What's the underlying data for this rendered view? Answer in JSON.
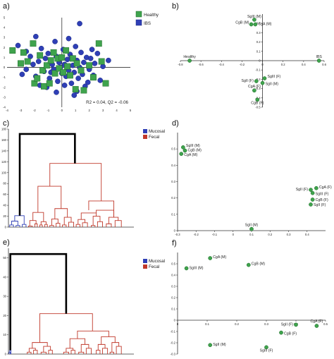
{
  "panels": {
    "a": "a)",
    "b": "b)",
    "c": "c)",
    "d": "d)",
    "e": "e)",
    "f": "f)"
  },
  "colors": {
    "green": "#3fa34d",
    "blue": "#2f3fb6",
    "red": "#c0392b",
    "black": "#000000"
  },
  "chart_data": [
    {
      "id": "a",
      "type": "scatter",
      "xlim": [
        -4,
        5
      ],
      "ylim": [
        -4,
        5
      ],
      "xticks": [
        "-4",
        "-3",
        "-2",
        "-1",
        "0",
        "1",
        "2",
        "3",
        "4",
        "5"
      ],
      "yticks": [
        "-4",
        "-3",
        "-2",
        "-1",
        "0",
        "1",
        "2",
        "3",
        "4",
        "5"
      ],
      "legend": [
        "Healthy",
        "IBS"
      ],
      "annotation": "R2 = 0.04, Q2 = -0.06",
      "series": [
        {
          "name": "Healthy",
          "marker": "square",
          "points": [
            [
              -3.6,
              1.7
            ],
            [
              -3.0,
              0.4
            ],
            [
              -2.8,
              1.5
            ],
            [
              -2.5,
              0.6
            ],
            [
              -2.1,
              2.4
            ],
            [
              -2.0,
              -1.6
            ],
            [
              -1.8,
              -1.1
            ],
            [
              -1.6,
              1.2
            ],
            [
              -1.4,
              -0.3
            ],
            [
              -1.3,
              -1.9
            ],
            [
              -1.1,
              0.2
            ],
            [
              -0.9,
              -1.6
            ],
            [
              -0.8,
              0.7
            ],
            [
              -0.6,
              1.5
            ],
            [
              -0.5,
              -0.6
            ],
            [
              -0.3,
              0.9
            ],
            [
              -0.2,
              -0.1
            ],
            [
              0.0,
              1.0
            ],
            [
              0.1,
              -0.5
            ],
            [
              0.3,
              1.7
            ],
            [
              0.4,
              0.1
            ],
            [
              0.6,
              -0.8
            ],
            [
              0.8,
              0.9
            ],
            [
              1.0,
              -2.2
            ],
            [
              1.1,
              0.4
            ],
            [
              1.4,
              -0.3
            ],
            [
              1.6,
              -2.3
            ],
            [
              2.0,
              0.2
            ],
            [
              2.3,
              -1.0
            ],
            [
              2.7,
              2.4
            ],
            [
              2.9,
              0.6
            ],
            [
              3.2,
              -1.6
            ]
          ]
        },
        {
          "name": "IBS",
          "marker": "circle",
          "points": [
            [
              -3.2,
              2.2
            ],
            [
              -2.9,
              -0.7
            ],
            [
              -2.6,
              -0.2
            ],
            [
              -2.3,
              1.1
            ],
            [
              -2.1,
              0.3
            ],
            [
              -1.9,
              -0.9
            ],
            [
              -1.7,
              0.6
            ],
            [
              -1.5,
              1.9
            ],
            [
              -1.3,
              -0.4
            ],
            [
              -1.2,
              0.9
            ],
            [
              -1.0,
              1.4
            ],
            [
              -0.9,
              -1.1
            ],
            [
              -0.7,
              0.3
            ],
            [
              -0.6,
              -0.2
            ],
            [
              -0.5,
              2.6
            ],
            [
              -0.4,
              1.1
            ],
            [
              -0.3,
              -1.4
            ],
            [
              -0.2,
              0.5
            ],
            [
              -0.1,
              0.0
            ],
            [
              0.0,
              -0.6
            ],
            [
              0.1,
              1.8
            ],
            [
              0.2,
              0.3
            ],
            [
              0.3,
              -0.9
            ],
            [
              0.4,
              0.8
            ],
            [
              0.5,
              -0.3
            ],
            [
              0.6,
              1.3
            ],
            [
              0.7,
              -1.6
            ],
            [
              0.8,
              0.2
            ],
            [
              0.9,
              -0.5
            ],
            [
              1.0,
              2.1
            ],
            [
              1.1,
              0.7
            ],
            [
              1.2,
              -1.1
            ],
            [
              1.3,
              0.0
            ],
            [
              1.4,
              1.5
            ],
            [
              1.5,
              -0.7
            ],
            [
              1.6,
              0.5
            ],
            [
              1.7,
              -1.9
            ],
            [
              1.8,
              1.0
            ],
            [
              2.0,
              -0.2
            ],
            [
              2.1,
              0.9
            ],
            [
              2.3,
              -0.8
            ],
            [
              2.4,
              0.4
            ],
            [
              2.6,
              1.4
            ],
            [
              2.8,
              -1.3
            ],
            [
              3.0,
              0.1
            ],
            [
              1.3,
              4.4
            ],
            [
              -1.9,
              3.1
            ],
            [
              -0.4,
              -2.5
            ],
            [
              0.9,
              -2.8
            ],
            [
              3.4,
              0.7
            ],
            [
              -0.8,
              -0.5
            ],
            [
              0.2,
              -1.8
            ],
            [
              1.9,
              -1.5
            ],
            [
              -1.6,
              -1.8
            ],
            [
              0.5,
              2.9
            ],
            [
              2.2,
              1.8
            ],
            [
              -2.6,
              1.6
            ],
            [
              1.1,
              -2.4
            ],
            [
              -1.1,
              -2.0
            ],
            [
              0.7,
              1.0
            ]
          ]
        }
      ]
    },
    {
      "id": "b",
      "type": "scatter",
      "xlim": [
        -0.8,
        0.6
      ],
      "ylim": [
        -0.5,
        0.5
      ],
      "xticks": [
        "-0.8",
        "-0.6",
        "-0.4",
        "-0.2",
        "0",
        "0.2",
        "0.4",
        "0.6"
      ],
      "yticks": [
        "-0.5",
        "-0.4",
        "-0.3",
        "-0.2",
        "-0.1",
        "0",
        "0.1",
        "0.2",
        "0.3",
        "0.4"
      ],
      "points": [
        {
          "label": "SgIII (M)",
          "x": -0.08,
          "y": 0.44
        },
        {
          "label": "CgB (M)",
          "x": -0.11,
          "y": 0.39
        },
        {
          "label": "CgA (M)",
          "x": -0.07,
          "y": 0.39
        },
        {
          "label": "Healthy",
          "x": -0.71,
          "y": 0.0
        },
        {
          "label": "IBS",
          "x": 0.55,
          "y": 0.0
        },
        {
          "label": "SgIII (F)",
          "x": 0.02,
          "y": -0.19
        },
        {
          "label": "SgII (F)",
          "x": -0.06,
          "y": -0.22
        },
        {
          "label": "SgII (M)",
          "x": 0.0,
          "y": -0.24
        },
        {
          "label": "CgA (F)",
          "x": -0.08,
          "y": -0.32
        },
        {
          "label": "CgB (F)",
          "x": -0.05,
          "y": -0.42
        }
      ]
    },
    {
      "id": "c",
      "type": "dendrogram",
      "ylim": [
        0,
        180
      ],
      "yticks": [
        "0",
        "20",
        "40",
        "60",
        "80",
        "100",
        "120",
        "140",
        "160",
        "180"
      ],
      "legend": [
        "Mucosal",
        "Fecal"
      ]
    },
    {
      "id": "d",
      "type": "scatter",
      "xlim": [
        -0.3,
        0.5
      ],
      "ylim": [
        0,
        0.6
      ],
      "xticks": [
        "-0.3",
        "-0.2",
        "-0.1",
        "0",
        "0.1",
        "0.2",
        "0.3",
        "0.4"
      ],
      "yticks": [
        "0",
        "0.1",
        "0.2",
        "0.3",
        "0.4",
        "0.5"
      ],
      "points": [
        {
          "label": "SgIII (M)",
          "x": -0.27,
          "y": 0.51
        },
        {
          "label": "CgB (M)",
          "x": -0.26,
          "y": 0.49
        },
        {
          "label": "CgA (M)",
          "x": -0.28,
          "y": 0.47
        },
        {
          "label": "CgA (F)",
          "x": 0.45,
          "y": 0.26
        },
        {
          "label": "SgII (F)",
          "x": 0.42,
          "y": 0.25
        },
        {
          "label": "SgIII (F)",
          "x": 0.43,
          "y": 0.23
        },
        {
          "label": "CgB (F)",
          "x": 0.43,
          "y": 0.19
        },
        {
          "label": "SgII (F)",
          "x": 0.42,
          "y": 0.16
        },
        {
          "label": "SgII (M)",
          "x": 0.1,
          "y": 0.01
        }
      ]
    },
    {
      "id": "e",
      "type": "dendrogram",
      "ylim": [
        0,
        55
      ],
      "yticks": [
        "0",
        "10",
        "20",
        "30",
        "40",
        "50"
      ],
      "legend": [
        "Mucosal",
        "Fecal"
      ]
    },
    {
      "id": "f",
      "type": "scatter",
      "xlim": [
        0,
        0.5
      ],
      "ylim": [
        -0.3,
        0.6
      ],
      "xticks": [
        "0",
        "0.1",
        "0.2",
        "0.3",
        "0.4",
        "0.5"
      ],
      "yticks": [
        "-0.3",
        "-0.2",
        "-0.1",
        "0",
        "0.1",
        "0.2",
        "0.3",
        "0.4",
        "0.5"
      ],
      "points": [
        {
          "label": "CgA (M)",
          "x": 0.11,
          "y": 0.55
        },
        {
          "label": "CgB (M)",
          "x": 0.24,
          "y": 0.49
        },
        {
          "label": "SgIII (M)",
          "x": 0.03,
          "y": 0.46
        },
        {
          "label": "CgA (F)",
          "x": 0.47,
          "y": -0.05
        },
        {
          "label": "SgII (F)",
          "x": 0.4,
          "y": -0.04
        },
        {
          "label": "CgB (F)",
          "x": 0.35,
          "y": -0.11
        },
        {
          "label": "SgII (M)",
          "x": 0.11,
          "y": -0.22
        },
        {
          "label": "SgIII (F)",
          "x": 0.3,
          "y": -0.24
        }
      ]
    }
  ]
}
